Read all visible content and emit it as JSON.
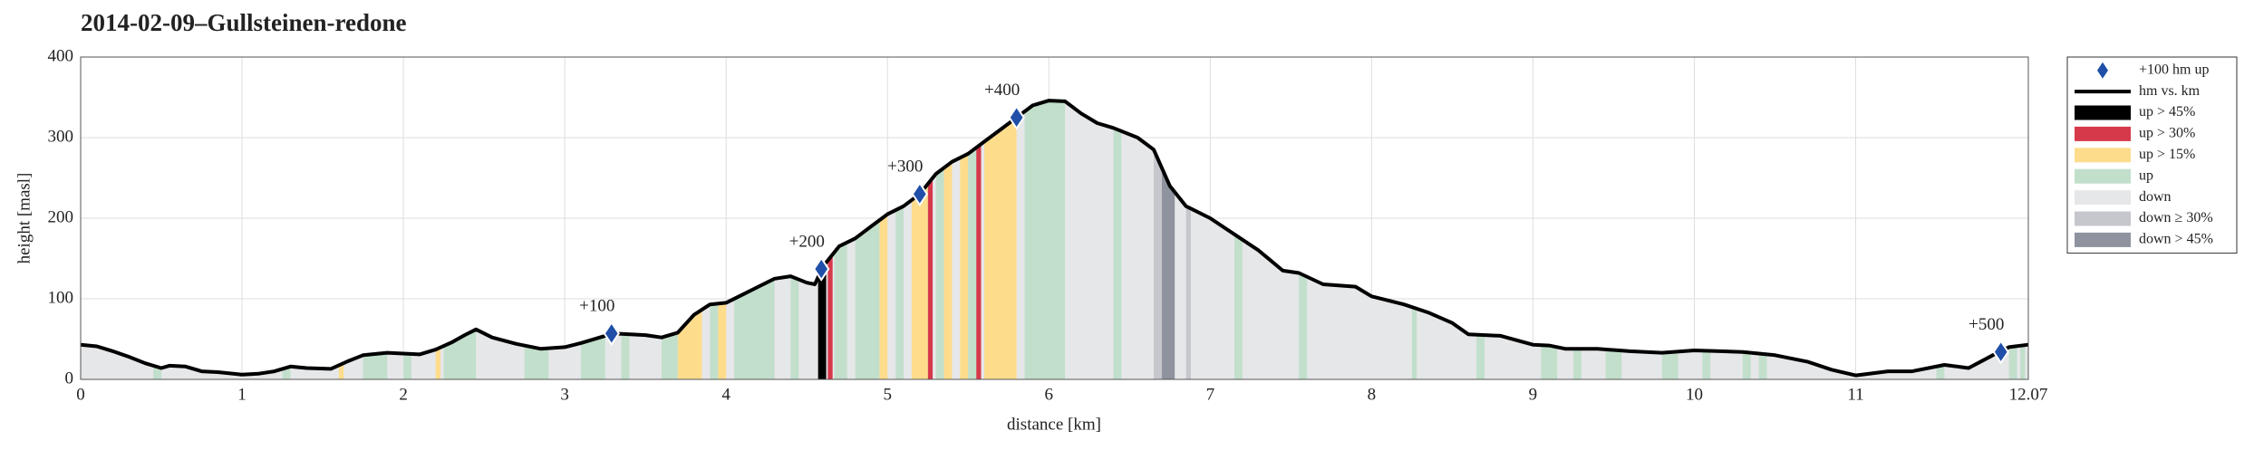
{
  "chart_data": {
    "type": "area",
    "title": "2014-02-09–Gullsteinen-redone",
    "xlabel": "distance [km]",
    "ylabel": "height [masl]",
    "xlim": [
      0,
      12.07
    ],
    "ylim": [
      0,
      400
    ],
    "xticks": [
      0,
      1,
      2,
      3,
      4,
      5,
      6,
      7,
      8,
      9,
      10,
      11,
      12.07
    ],
    "yticks": [
      0,
      100,
      200,
      300,
      400
    ],
    "grid": true,
    "legend": "outside-right",
    "x": [
      0,
      0.1,
      0.2,
      0.3,
      0.4,
      0.5,
      0.55,
      0.65,
      0.75,
      0.85,
      1.0,
      1.1,
      1.2,
      1.3,
      1.4,
      1.55,
      1.65,
      1.75,
      1.9,
      2.0,
      2.1,
      2.2,
      2.3,
      2.38,
      2.45,
      2.55,
      2.7,
      2.85,
      3.0,
      3.1,
      3.3,
      3.5,
      3.6,
      3.7,
      3.8,
      3.9,
      4.0,
      4.1,
      4.2,
      4.3,
      4.4,
      4.5,
      4.55,
      4.6,
      4.7,
      4.8,
      4.9,
      5.0,
      5.1,
      5.2,
      5.3,
      5.4,
      5.5,
      5.6,
      5.7,
      5.8,
      5.9,
      6.0,
      6.1,
      6.2,
      6.3,
      6.4,
      6.55,
      6.65,
      6.75,
      6.85,
      7.0,
      7.15,
      7.3,
      7.45,
      7.55,
      7.7,
      7.9,
      8.0,
      8.2,
      8.35,
      8.5,
      8.6,
      8.8,
      9.0,
      9.1,
      9.2,
      9.4,
      9.6,
      9.8,
      10.0,
      10.3,
      10.5,
      10.7,
      10.85,
      11.0,
      11.2,
      11.35,
      11.55,
      11.7,
      11.85,
      11.95,
      12.07
    ],
    "profile": {
      "name": "hm vs. km",
      "color": "#000000",
      "values": [
        43,
        41,
        35,
        28,
        20,
        14,
        17,
        16,
        10,
        9,
        6,
        7,
        10,
        16,
        14,
        13,
        22,
        30,
        33,
        32,
        31,
        37,
        46,
        55,
        62,
        52,
        44,
        38,
        40,
        45,
        57,
        55,
        52,
        58,
        80,
        93,
        95,
        105,
        115,
        125,
        128,
        120,
        118,
        140,
        165,
        175,
        190,
        205,
        215,
        230,
        255,
        270,
        280,
        295,
        310,
        325,
        340,
        346,
        345,
        330,
        318,
        312,
        300,
        285,
        240,
        215,
        200,
        180,
        160,
        135,
        132,
        118,
        115,
        103,
        93,
        83,
        70,
        56,
        54,
        43,
        42,
        38,
        38,
        35,
        33,
        36,
        34,
        30,
        22,
        12,
        5,
        10,
        10,
        18,
        14,
        30,
        40,
        43
      ]
    },
    "bands": [
      {
        "name": "up > 45%",
        "color": "#000000",
        "segments": [
          [
            4.57,
            4.62
          ]
        ]
      },
      {
        "name": "up > 30%",
        "color": "#d63a4a",
        "segments": [
          [
            4.63,
            4.66
          ],
          [
            5.25,
            5.28
          ],
          [
            5.55,
            5.58
          ]
        ]
      },
      {
        "name": "up > 15%",
        "color": "#fddc8c",
        "segments": [
          [
            1.6,
            1.63
          ],
          [
            2.2,
            2.23
          ],
          [
            3.7,
            3.85
          ],
          [
            3.95,
            4.0
          ],
          [
            4.95,
            5.0
          ],
          [
            5.15,
            5.25
          ],
          [
            5.35,
            5.4
          ],
          [
            5.45,
            5.5
          ],
          [
            5.6,
            5.8
          ]
        ]
      },
      {
        "name": "up",
        "color": "#c2dfcc",
        "segments": [
          [
            0.45,
            0.5
          ],
          [
            1.25,
            1.3
          ],
          [
            1.75,
            1.9
          ],
          [
            2.0,
            2.05
          ],
          [
            2.25,
            2.45
          ],
          [
            2.75,
            2.9
          ],
          [
            3.1,
            3.25
          ],
          [
            3.35,
            3.4
          ],
          [
            3.6,
            3.7
          ],
          [
            3.9,
            3.95
          ],
          [
            4.05,
            4.3
          ],
          [
            4.4,
            4.45
          ],
          [
            4.67,
            4.75
          ],
          [
            4.8,
            4.95
          ],
          [
            5.05,
            5.1
          ],
          [
            5.3,
            5.35
          ],
          [
            5.5,
            5.55
          ],
          [
            5.85,
            6.1
          ],
          [
            6.4,
            6.45
          ],
          [
            7.15,
            7.2
          ],
          [
            7.55,
            7.6
          ],
          [
            8.25,
            8.28
          ],
          [
            8.65,
            8.7
          ],
          [
            9.05,
            9.15
          ],
          [
            9.25,
            9.3
          ],
          [
            9.45,
            9.55
          ],
          [
            9.8,
            9.9
          ],
          [
            10.05,
            10.1
          ],
          [
            10.3,
            10.35
          ],
          [
            10.4,
            10.45
          ],
          [
            11.5,
            11.55
          ],
          [
            11.95,
            12.0
          ],
          [
            12.02,
            12.05
          ]
        ]
      },
      {
        "name": "down",
        "color": "#e6e7e9",
        "segments": [
          [
            0,
            12.07
          ]
        ]
      },
      {
        "name": "down ≥ 30%",
        "color": "#c5c7cc",
        "segments": [
          [
            6.65,
            6.7
          ],
          [
            6.85,
            6.88
          ]
        ]
      },
      {
        "name": "down > 45%",
        "color": "#8e939f",
        "segments": [
          [
            6.7,
            6.78
          ]
        ]
      }
    ],
    "markers": {
      "name": "+100 hm up",
      "color": "#1f4fa8",
      "x": [
        3.29,
        4.59,
        5.2,
        5.8,
        11.9
      ],
      "values": [
        57,
        137,
        230,
        325,
        34
      ],
      "annotations": [
        {
          "value": 100,
          "label": "+100"
        },
        {
          "value": 200,
          "label": "+200"
        },
        {
          "value": 300,
          "label": "+300"
        },
        {
          "value": 400,
          "label": "+400"
        },
        {
          "value": 500,
          "label": "+500"
        }
      ]
    }
  }
}
